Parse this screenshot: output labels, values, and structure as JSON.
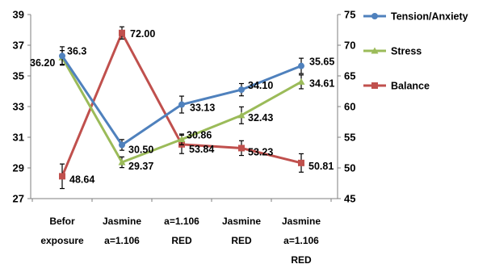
{
  "chart_data": {
    "type": "line",
    "categories": [
      [
        "Befor",
        "exposure"
      ],
      [
        "Jasmine",
        "a=1.106"
      ],
      [
        "a=1.106",
        "RED"
      ],
      [
        "Jasmine",
        "RED"
      ],
      [
        "Jasmine",
        "a=1.106",
        "RED"
      ]
    ],
    "left_axis": {
      "ylim": [
        27,
        39
      ],
      "ticks": [
        "27",
        "29",
        "31",
        "33",
        "35",
        "37",
        "39"
      ]
    },
    "right_axis": {
      "ylim": [
        45,
        75
      ],
      "ticks": [
        "45",
        "50",
        "55",
        "60",
        "65",
        "70",
        "75"
      ]
    },
    "grid": false,
    "legend_position": "right",
    "series": [
      {
        "name": "Tension/Anxiety",
        "axis": "left",
        "color": "#4F81BD",
        "marker": "circle",
        "values": [
          36.3,
          30.5,
          33.13,
          34.1,
          35.65
        ],
        "errors": [
          0.6,
          0.35,
          0.55,
          0.4,
          0.5
        ],
        "labels": [
          "36.3",
          "30.50",
          "33.13",
          "34.10",
          "35.65"
        ]
      },
      {
        "name": "Stress",
        "axis": "left",
        "color": "#9BBB59",
        "marker": "triangle",
        "values": [
          36.2,
          29.37,
          30.86,
          32.43,
          34.61
        ],
        "errors": [
          0.45,
          0.35,
          0.35,
          0.55,
          0.45
        ],
        "labels": [
          "36.20",
          "29.37",
          "30.86",
          "32.43",
          "34.61"
        ]
      },
      {
        "name": "Balance",
        "axis": "right",
        "color": "#C0504D",
        "marker": "square",
        "values": [
          48.64,
          72.0,
          53.84,
          53.23,
          50.81
        ],
        "errors": [
          2.0,
          1.0,
          1.5,
          1.2,
          1.5
        ],
        "labels": [
          "48.64",
          "72.00",
          "53.84",
          "53.23",
          "50.81"
        ]
      }
    ]
  }
}
